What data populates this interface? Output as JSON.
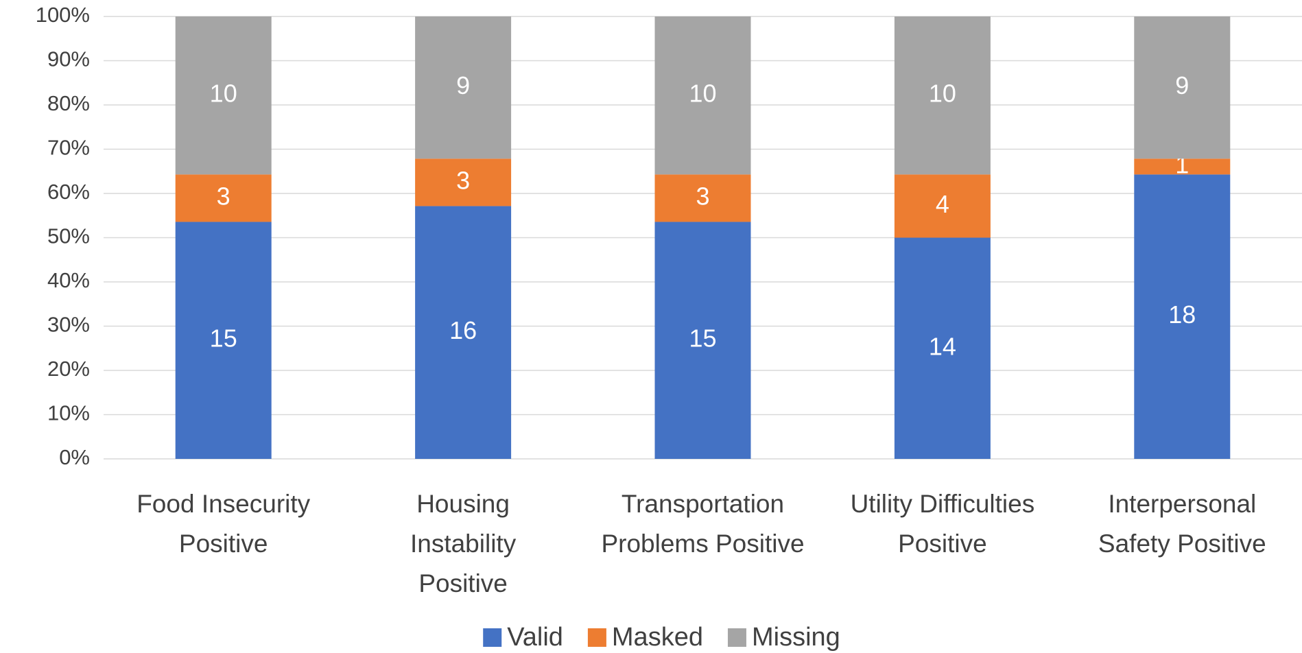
{
  "chart_data": {
    "type": "bar",
    "stacking": "percent",
    "categories": [
      "Food Insecurity Positive",
      "Housing Instability Positive",
      "Transportation Problems Positive",
      "Utility Difficulties Positive",
      "Interpersonal Safety Positive"
    ],
    "series": [
      {
        "name": "Valid",
        "color": "#4472c4",
        "values": [
          15,
          16,
          15,
          14,
          18
        ]
      },
      {
        "name": "Masked",
        "color": "#ed7d31",
        "values": [
          3,
          3,
          3,
          4,
          1
        ]
      },
      {
        "name": "Missing",
        "color": "#a5a5a5",
        "values": [
          10,
          9,
          10,
          10,
          9
        ]
      }
    ],
    "ylim": [
      0,
      100
    ],
    "yticks": [
      {
        "value": 0,
        "label": "0%"
      },
      {
        "value": 10,
        "label": "10%"
      },
      {
        "value": 20,
        "label": "20%"
      },
      {
        "value": 30,
        "label": "30%"
      },
      {
        "value": 40,
        "label": "40%"
      },
      {
        "value": 50,
        "label": "50%"
      },
      {
        "value": 60,
        "label": "60%"
      },
      {
        "value": 70,
        "label": "70%"
      },
      {
        "value": 80,
        "label": "80%"
      },
      {
        "value": 90,
        "label": "90%"
      },
      {
        "value": 100,
        "label": "100%"
      }
    ],
    "grid": true,
    "legend": "bottom"
  }
}
